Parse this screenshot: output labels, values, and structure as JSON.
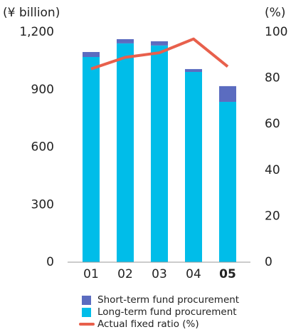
{
  "chart_data": {
    "type": "bar",
    "y_label": "(¥ billion)",
    "y2_label": "(%)",
    "categories": [
      "01",
      "02",
      "03",
      "04",
      "05"
    ],
    "series": [
      {
        "name": "Short-term fund procurement",
        "type": "bar",
        "color": "#5b6cc0",
        "values": [
          26,
          22,
          22,
          15,
          82
        ]
      },
      {
        "name": "Long-term fund procurement",
        "type": "bar",
        "color": "#00bde9",
        "values": [
          1070,
          1141,
          1130,
          992,
          836
        ]
      },
      {
        "name": "Actual fixed ratio (%)",
        "type": "line",
        "axis": "y2",
        "color": "#e8604c",
        "values": [
          84,
          89,
          91,
          97,
          85
        ]
      }
    ],
    "ylim": [
      0,
      1200
    ],
    "yticks": [
      0,
      300,
      600,
      900,
      {
        "value": 1200,
        "label": "1,200"
      }
    ],
    "y2lim": [
      0,
      100
    ],
    "y2ticks": [
      0,
      20,
      40,
      60,
      80,
      100
    ]
  }
}
